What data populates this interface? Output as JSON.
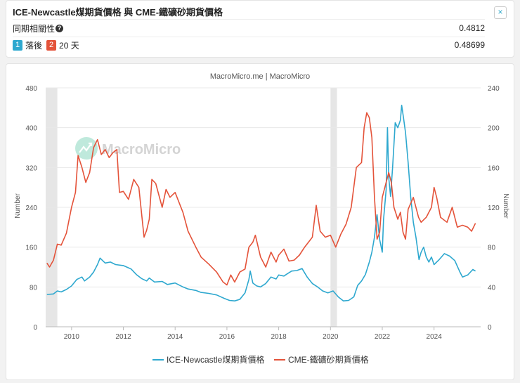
{
  "header": {
    "title": "ICE-Newcastle煤期貨價格 與 CME-鐵礦砂期貨價格",
    "close_label": "×",
    "corr_label": "同期相關性",
    "corr_help": "?",
    "corr_value": "0.4812",
    "lag_badge1": "1",
    "lag_text1": "落後",
    "lag_badge2": "2",
    "lag_text2": "20 天",
    "lag_value": "0.48699"
  },
  "colors": {
    "series1": "#2ea8cf",
    "series2": "#e4533a",
    "badge1": "#2ea8cf",
    "badge2": "#e4533a"
  },
  "chart_data": {
    "type": "line",
    "source": "MacroMicro.me | MacroMicro",
    "watermark": "MacroMicro",
    "ylabel_left": "Number",
    "ylabel_right": "Number",
    "xlim": [
      2009,
      2025.8
    ],
    "ylim_left": [
      0,
      480
    ],
    "ylim_right": [
      0,
      240
    ],
    "left_ticks": [
      "0",
      "80",
      "160",
      "240",
      "320",
      "400",
      "480"
    ],
    "right_ticks": [
      "0",
      "40",
      "80",
      "120",
      "160",
      "200",
      "240"
    ],
    "x_ticks": [
      "2010",
      "2012",
      "2014",
      "2016",
      "2018",
      "2020",
      "2022",
      "2024"
    ],
    "recessions": [
      [
        2009.0,
        2009.45
      ],
      [
        2020.0,
        2020.25
      ]
    ],
    "series": [
      {
        "name": "ICE-Newcastle煤期貨價格",
        "axis": "left",
        "points": [
          [
            2009.05,
            65
          ],
          [
            2009.3,
            66
          ],
          [
            2009.45,
            72
          ],
          [
            2009.6,
            70
          ],
          [
            2009.8,
            75
          ],
          [
            2010.0,
            82
          ],
          [
            2010.2,
            95
          ],
          [
            2010.4,
            100
          ],
          [
            2010.5,
            92
          ],
          [
            2010.7,
            100
          ],
          [
            2010.85,
            110
          ],
          [
            2011.0,
            125
          ],
          [
            2011.1,
            138
          ],
          [
            2011.3,
            128
          ],
          [
            2011.5,
            130
          ],
          [
            2011.7,
            125
          ],
          [
            2012.0,
            123
          ],
          [
            2012.3,
            116
          ],
          [
            2012.5,
            105
          ],
          [
            2012.7,
            97
          ],
          [
            2012.9,
            92
          ],
          [
            2013.0,
            98
          ],
          [
            2013.2,
            90
          ],
          [
            2013.5,
            91
          ],
          [
            2013.7,
            85
          ],
          [
            2014.0,
            88
          ],
          [
            2014.3,
            80
          ],
          [
            2014.5,
            76
          ],
          [
            2014.8,
            73
          ],
          [
            2015.0,
            69
          ],
          [
            2015.3,
            67
          ],
          [
            2015.6,
            64
          ],
          [
            2015.9,
            57
          ],
          [
            2016.1,
            53
          ],
          [
            2016.3,
            52
          ],
          [
            2016.5,
            55
          ],
          [
            2016.7,
            68
          ],
          [
            2016.85,
            95
          ],
          [
            2016.9,
            112
          ],
          [
            2017.0,
            88
          ],
          [
            2017.15,
            82
          ],
          [
            2017.3,
            80
          ],
          [
            2017.5,
            87
          ],
          [
            2017.7,
            100
          ],
          [
            2017.9,
            96
          ],
          [
            2018.0,
            104
          ],
          [
            2018.2,
            102
          ],
          [
            2018.35,
            107
          ],
          [
            2018.5,
            112
          ],
          [
            2018.7,
            113
          ],
          [
            2018.9,
            117
          ],
          [
            2019.1,
            100
          ],
          [
            2019.3,
            87
          ],
          [
            2019.5,
            80
          ],
          [
            2019.7,
            72
          ],
          [
            2019.9,
            68
          ],
          [
            2020.1,
            72
          ],
          [
            2020.3,
            60
          ],
          [
            2020.5,
            52
          ],
          [
            2020.7,
            53
          ],
          [
            2020.9,
            60
          ],
          [
            2021.05,
            83
          ],
          [
            2021.2,
            92
          ],
          [
            2021.35,
            105
          ],
          [
            2021.5,
            130
          ],
          [
            2021.6,
            150
          ],
          [
            2021.7,
            180
          ],
          [
            2021.8,
            225
          ],
          [
            2021.9,
            175
          ],
          [
            2022.0,
            150
          ],
          [
            2022.05,
            215
          ],
          [
            2022.15,
            275
          ],
          [
            2022.2,
            400
          ],
          [
            2022.25,
            300
          ],
          [
            2022.32,
            262
          ],
          [
            2022.4,
            320
          ],
          [
            2022.5,
            410
          ],
          [
            2022.6,
            400
          ],
          [
            2022.7,
            415
          ],
          [
            2022.75,
            445
          ],
          [
            2022.82,
            420
          ],
          [
            2022.9,
            390
          ],
          [
            2023.0,
            330
          ],
          [
            2023.1,
            260
          ],
          [
            2023.2,
            210
          ],
          [
            2023.3,
            180
          ],
          [
            2023.42,
            135
          ],
          [
            2023.5,
            150
          ],
          [
            2023.6,
            160
          ],
          [
            2023.7,
            140
          ],
          [
            2023.8,
            130
          ],
          [
            2023.9,
            140
          ],
          [
            2024.0,
            125
          ],
          [
            2024.2,
            135
          ],
          [
            2024.4,
            147
          ],
          [
            2024.6,
            142
          ],
          [
            2024.8,
            133
          ],
          [
            2025.0,
            110
          ],
          [
            2025.1,
            100
          ],
          [
            2025.3,
            104
          ],
          [
            2025.5,
            115
          ],
          [
            2025.6,
            112
          ]
        ]
      },
      {
        "name": "CME-鐵礦砂期貨價格",
        "axis": "right",
        "points": [
          [
            2009.05,
            64
          ],
          [
            2009.15,
            60
          ],
          [
            2009.3,
            67
          ],
          [
            2009.45,
            83
          ],
          [
            2009.6,
            82
          ],
          [
            2009.8,
            94
          ],
          [
            2010.0,
            120
          ],
          [
            2010.15,
            135
          ],
          [
            2010.25,
            172
          ],
          [
            2010.4,
            160
          ],
          [
            2010.55,
            145
          ],
          [
            2010.7,
            155
          ],
          [
            2010.85,
            180
          ],
          [
            2011.0,
            188
          ],
          [
            2011.15,
            173
          ],
          [
            2011.3,
            178
          ],
          [
            2011.45,
            170
          ],
          [
            2011.6,
            175
          ],
          [
            2011.75,
            178
          ],
          [
            2011.85,
            135
          ],
          [
            2012.0,
            136
          ],
          [
            2012.2,
            128
          ],
          [
            2012.4,
            148
          ],
          [
            2012.6,
            140
          ],
          [
            2012.8,
            90
          ],
          [
            2012.9,
            97
          ],
          [
            2013.0,
            108
          ],
          [
            2013.1,
            148
          ],
          [
            2013.25,
            144
          ],
          [
            2013.5,
            120
          ],
          [
            2013.65,
            138
          ],
          [
            2013.8,
            130
          ],
          [
            2014.0,
            135
          ],
          [
            2014.3,
            115
          ],
          [
            2014.5,
            96
          ],
          [
            2014.8,
            80
          ],
          [
            2015.0,
            70
          ],
          [
            2015.3,
            63
          ],
          [
            2015.6,
            55
          ],
          [
            2015.85,
            45
          ],
          [
            2016.0,
            42
          ],
          [
            2016.15,
            52
          ],
          [
            2016.3,
            45
          ],
          [
            2016.5,
            55
          ],
          [
            2016.7,
            58
          ],
          [
            2016.85,
            80
          ],
          [
            2017.0,
            85
          ],
          [
            2017.1,
            92
          ],
          [
            2017.3,
            70
          ],
          [
            2017.5,
            60
          ],
          [
            2017.7,
            75
          ],
          [
            2017.9,
            65
          ],
          [
            2018.0,
            72
          ],
          [
            2018.2,
            78
          ],
          [
            2018.4,
            66
          ],
          [
            2018.6,
            67
          ],
          [
            2018.8,
            72
          ],
          [
            2019.0,
            80
          ],
          [
            2019.3,
            90
          ],
          [
            2019.45,
            122
          ],
          [
            2019.6,
            96
          ],
          [
            2019.8,
            90
          ],
          [
            2020.0,
            92
          ],
          [
            2020.2,
            80
          ],
          [
            2020.4,
            93
          ],
          [
            2020.6,
            103
          ],
          [
            2020.8,
            120
          ],
          [
            2021.0,
            160
          ],
          [
            2021.2,
            165
          ],
          [
            2021.3,
            200
          ],
          [
            2021.4,
            215
          ],
          [
            2021.5,
            210
          ],
          [
            2021.6,
            190
          ],
          [
            2021.7,
            130
          ],
          [
            2021.8,
            88
          ],
          [
            2021.9,
            95
          ],
          [
            2022.0,
            130
          ],
          [
            2022.15,
            145
          ],
          [
            2022.25,
            155
          ],
          [
            2022.35,
            145
          ],
          [
            2022.45,
            120
          ],
          [
            2022.6,
            108
          ],
          [
            2022.7,
            115
          ],
          [
            2022.8,
            95
          ],
          [
            2022.9,
            88
          ],
          [
            2023.0,
            118
          ],
          [
            2023.2,
            130
          ],
          [
            2023.4,
            110
          ],
          [
            2023.5,
            105
          ],
          [
            2023.7,
            110
          ],
          [
            2023.9,
            120
          ],
          [
            2024.0,
            140
          ],
          [
            2024.1,
            130
          ],
          [
            2024.25,
            110
          ],
          [
            2024.5,
            105
          ],
          [
            2024.7,
            120
          ],
          [
            2024.9,
            100
          ],
          [
            2025.1,
            102
          ],
          [
            2025.3,
            100
          ],
          [
            2025.45,
            96
          ],
          [
            2025.6,
            104
          ]
        ]
      }
    ]
  }
}
